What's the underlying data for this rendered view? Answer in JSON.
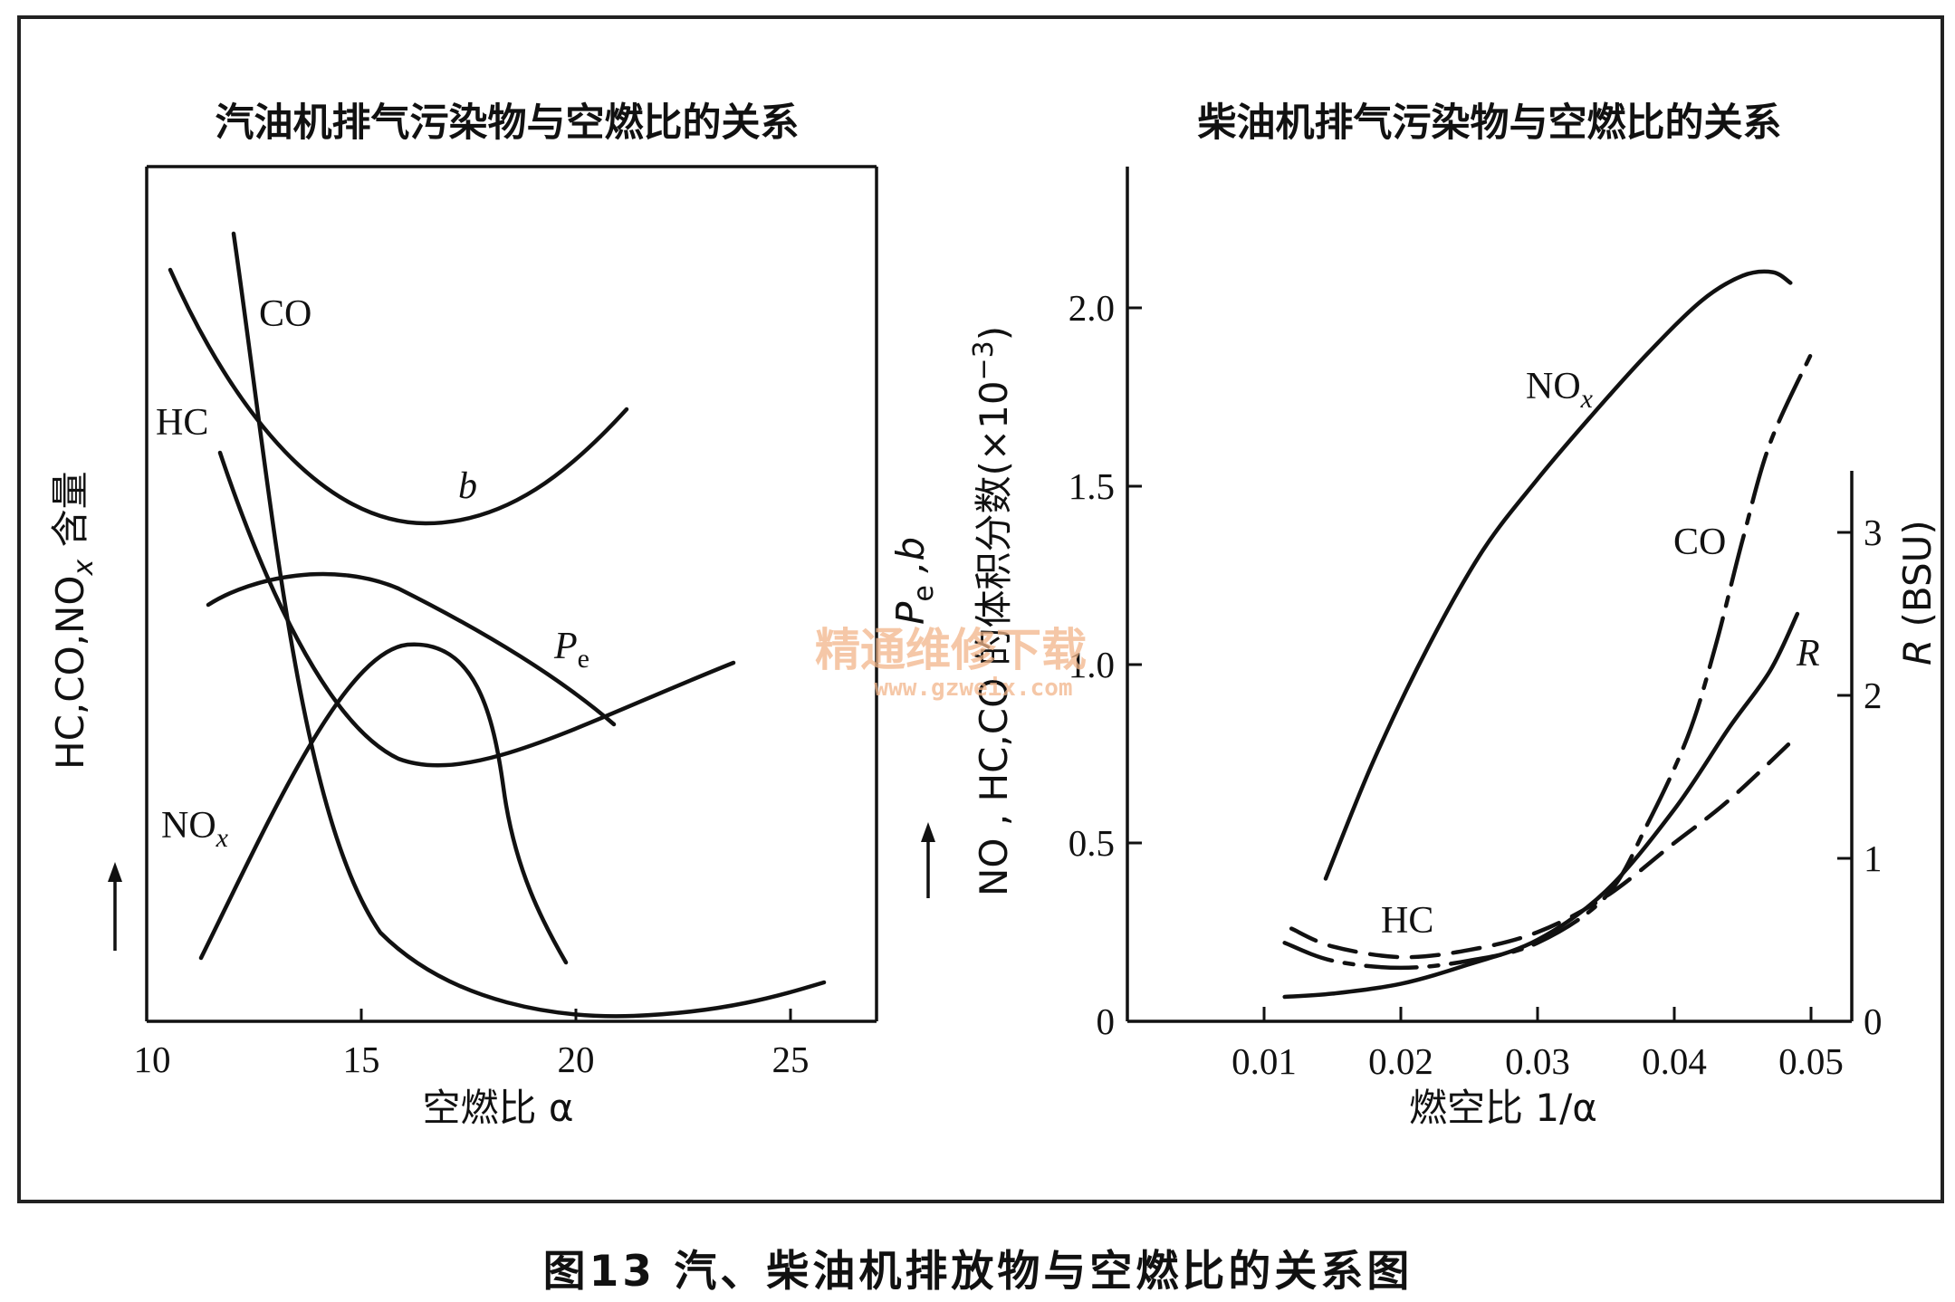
{
  "caption": "图13  汽、柴油机排放物与空燃比的关系图",
  "watermark": {
    "text": "精通维修下载",
    "url": "www.gzweix.com"
  },
  "left_chart": {
    "title": "汽油机排气污染物与空燃比的关系",
    "xlabel": "空燃比 α",
    "ylabel_left": "HC,CO,NO",
    "ylabel_left_sub": "x",
    "ylabel_left_tail": " 含量",
    "ylabel_right": "P",
    "ylabel_right_sub": "e",
    "ylabel_right_tail": " ,b",
    "x_ticks": [
      "10",
      "15",
      "20",
      "25"
    ],
    "curve_labels": {
      "co": "CO",
      "hc": "HC",
      "b": "b",
      "pe": "P",
      "pe_sub": "e",
      "nox": "NO",
      "nox_sub": "x"
    }
  },
  "right_chart": {
    "title": "柴油机排气污染物与空燃比的关系",
    "xlabel": "燃空比 1/α",
    "ylabel_left": "NO , HC,CO 的体积分数(×10",
    "ylabel_left_sup": "−3",
    "ylabel_left_tail": ")",
    "ylabel_right": "R (BSU)",
    "y_ticks": [
      "0",
      "0.5",
      "1.0",
      "1.5",
      "2.0"
    ],
    "x_ticks": [
      "0.01",
      "0.02",
      "0.03",
      "0.04",
      "0.05"
    ],
    "r_ticks": [
      "0",
      "1",
      "2",
      "3"
    ],
    "curve_labels": {
      "nox": "NO",
      "nox_sub": "x",
      "co": "CO",
      "hc": "HC",
      "r": "R"
    }
  },
  "chart_data": [
    {
      "type": "line",
      "title": "汽油机排气污染物与空燃比的关系",
      "xlabel": "空燃比 α",
      "ylabel": "HC,CO,NOx 含量",
      "y2label": "Pe ,b",
      "xlim": [
        10,
        27
      ],
      "y_scale": "unlabeled (relative)",
      "grid": false,
      "series": [
        {
          "name": "CO",
          "shape": "steep decrease from α≈12 to minimum near α≈20–21, slight rise to α≈26.5"
        },
        {
          "name": "HC",
          "shape": "decreases from α≈11.7, minimum near α≈17.5, rises to α≈24"
        },
        {
          "name": "b",
          "shape": "U-shaped, minimum near α≈16.3, from α≈10.5 to α≈20.5"
        },
        {
          "name": "Pe",
          "shape": "hump, maximum near α≈14, from α≈11.3 to α≈21"
        },
        {
          "name": "NOx",
          "shape": "rises from α≈11.3, peak near α≈16, falls to α≈19.5"
        }
      ]
    },
    {
      "type": "line",
      "title": "柴油机排气污染物与空燃比的关系",
      "xlabel": "燃空比 1/α",
      "ylabel": "NO , HC,CO 的体积分数(×10^-3)",
      "y2label": "R (BSU)",
      "xlim": [
        0,
        0.053
      ],
      "ylim": [
        0,
        2.3
      ],
      "y2lim": [
        0,
        3.2
      ],
      "grid": false,
      "series": [
        {
          "name": "NOx",
          "axis": "left",
          "x": [
            0.0145,
            0.018,
            0.022,
            0.026,
            0.03,
            0.034,
            0.038,
            0.042,
            0.045,
            0.0472,
            0.0485
          ],
          "y": [
            0.4,
            0.73,
            1.05,
            1.32,
            1.52,
            1.7,
            1.87,
            2.02,
            2.09,
            2.1,
            2.07
          ]
        },
        {
          "name": "CO",
          "axis": "left",
          "x": [
            0.0115,
            0.015,
            0.02,
            0.025,
            0.03,
            0.035,
            0.038,
            0.041,
            0.043,
            0.045,
            0.047,
            0.05
          ],
          "y": [
            0.22,
            0.17,
            0.15,
            0.17,
            0.22,
            0.35,
            0.55,
            0.8,
            1.05,
            1.35,
            1.62,
            1.87
          ]
        },
        {
          "name": "HC",
          "axis": "left",
          "x": [
            0.012,
            0.015,
            0.02,
            0.025,
            0.03,
            0.035,
            0.04,
            0.044,
            0.049
          ],
          "y": [
            0.26,
            0.21,
            0.18,
            0.2,
            0.25,
            0.35,
            0.5,
            0.62,
            0.8
          ]
        },
        {
          "name": "R",
          "axis": "right",
          "x": [
            0.0115,
            0.015,
            0.02,
            0.025,
            0.03,
            0.035,
            0.04,
            0.044,
            0.047,
            0.049
          ],
          "y": [
            0.15,
            0.17,
            0.23,
            0.35,
            0.5,
            0.8,
            1.3,
            1.8,
            2.15,
            2.5
          ]
        }
      ]
    }
  ]
}
